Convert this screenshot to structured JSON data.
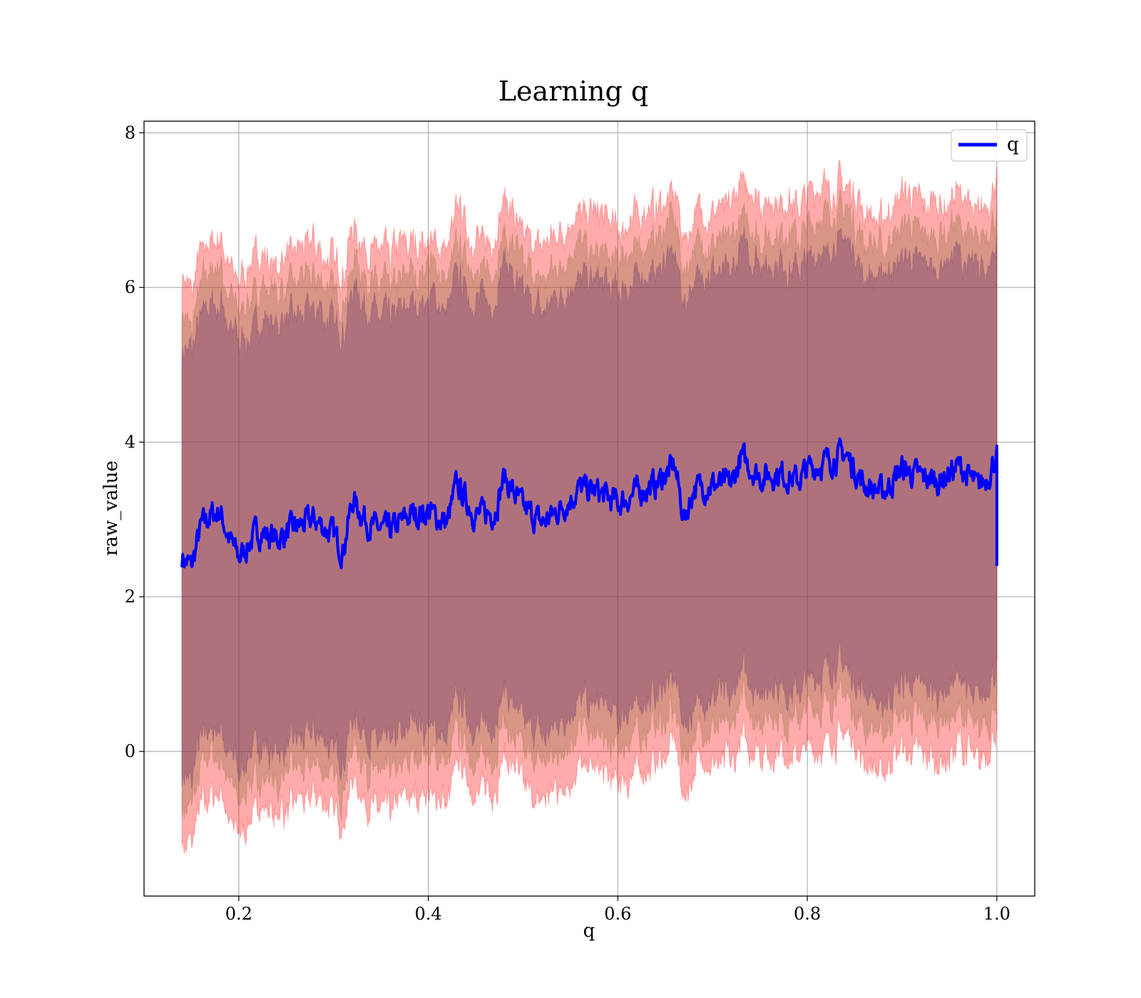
{
  "chart_data": {
    "type": "line",
    "title": "Learning q",
    "xlabel": "q",
    "ylabel": "raw_value",
    "xlim": [
      0.1,
      1.04
    ],
    "ylim": [
      -1.87,
      8.15
    ],
    "x_ticks": [
      0.2,
      0.4,
      0.6,
      0.8,
      1.0
    ],
    "x_tick_labels": [
      "0.2",
      "0.4",
      "0.6",
      "0.8",
      "1.0"
    ],
    "y_ticks": [
      0,
      2,
      4,
      6,
      8
    ],
    "y_tick_labels": [
      "0",
      "2",
      "4",
      "6",
      "8"
    ],
    "grid": true,
    "legend_position": "top-right",
    "series": [
      {
        "name": "q",
        "color": "#0000ff",
        "x": [
          0.14,
          0.15,
          0.16,
          0.17,
          0.18,
          0.19,
          0.2,
          0.22,
          0.24,
          0.26,
          0.28,
          0.3,
          0.31,
          0.32,
          0.34,
          0.36,
          0.38,
          0.4,
          0.42,
          0.43,
          0.45,
          0.47,
          0.48,
          0.5,
          0.52,
          0.54,
          0.56,
          0.58,
          0.6,
          0.62,
          0.64,
          0.66,
          0.67,
          0.68,
          0.7,
          0.72,
          0.73,
          0.75,
          0.77,
          0.79,
          0.8,
          0.82,
          0.84,
          0.86,
          0.88,
          0.9,
          0.92,
          0.94,
          0.96,
          0.98,
          0.99,
          1.0
        ],
        "y": [
          2.52,
          2.38,
          2.9,
          3.05,
          3.1,
          2.75,
          2.5,
          2.85,
          2.75,
          2.9,
          3.0,
          2.8,
          2.6,
          3.25,
          2.9,
          2.85,
          3.05,
          3.1,
          2.95,
          3.45,
          3.05,
          3.1,
          3.55,
          3.15,
          2.95,
          3.15,
          3.4,
          3.35,
          3.2,
          3.35,
          3.45,
          3.7,
          3.0,
          3.4,
          3.45,
          3.45,
          3.8,
          3.55,
          3.6,
          3.5,
          3.65,
          3.75,
          3.85,
          3.45,
          3.35,
          3.65,
          3.55,
          3.5,
          3.7,
          3.4,
          3.55,
          3.85
        ]
      }
    ],
    "bands": [
      {
        "role": "outer",
        "color": "#ff0000",
        "opacity": 0.33,
        "offset_upper": 3.55,
        "offset_lower": 3.6
      },
      {
        "role": "middle",
        "color": "#8b6a3a",
        "opacity": 0.33,
        "offset_upper": 3.15,
        "offset_lower": 3.15
      },
      {
        "role": "inner",
        "color": "#5b2b6b",
        "opacity": 0.33,
        "offset_upper": 2.75,
        "offset_lower": 2.75
      }
    ]
  }
}
